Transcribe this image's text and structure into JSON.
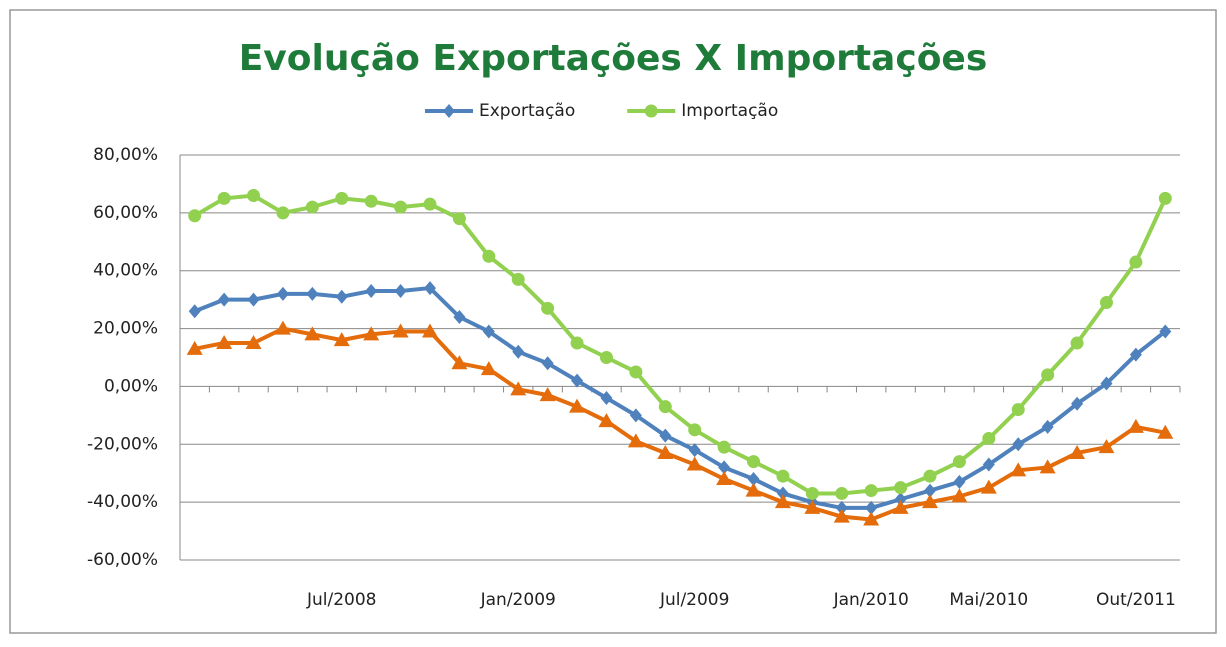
{
  "chart_data": {
    "type": "line",
    "title": "Evolução Exportações X Importações",
    "categories": [
      null,
      null,
      null,
      null,
      null,
      "Jul/2008",
      null,
      null,
      null,
      null,
      null,
      "Jan/2009",
      null,
      null,
      null,
      null,
      null,
      "Jul/2009",
      null,
      null,
      null,
      null,
      null,
      "Jan/2010",
      null,
      null,
      null,
      "Mai/2010",
      null,
      null,
      null,
      null,
      "Out/2011",
      null
    ],
    "series": [
      {
        "name": "Exportação",
        "color": "#4f81bd",
        "marker": "diamond",
        "values": [
          26,
          30,
          30,
          32,
          32,
          31,
          33,
          33,
          34,
          24,
          19,
          12,
          8,
          2,
          -4,
          -10,
          -17,
          -22,
          -28,
          -32,
          -37,
          -40,
          -42,
          -42,
          -39,
          -36,
          -33,
          -27,
          -20,
          -14,
          -6,
          1,
          11,
          19
        ]
      },
      {
        "name": "Importação",
        "color": "#92d050",
        "marker": "circle",
        "values": [
          59,
          65,
          66,
          60,
          62,
          65,
          64,
          62,
          63,
          58,
          45,
          37,
          27,
          15,
          10,
          5,
          -7,
          -15,
          -21,
          -26,
          -31,
          -37,
          -37,
          -36,
          -35,
          -31,
          -26,
          -18,
          -8,
          4,
          15,
          29,
          43,
          65
        ]
      },
      {
        "color": "#e46c0a",
        "marker": "triangle",
        "values": [
          13,
          15,
          15,
          20,
          18,
          16,
          18,
          19,
          19,
          8,
          6,
          -1,
          -3,
          -7,
          -12,
          -19,
          -23,
          -27,
          -32,
          -36,
          -40,
          -42,
          -45,
          -46,
          -42,
          -40,
          -38,
          -35,
          -29,
          -28,
          -23,
          -21,
          -14,
          -16
        ]
      }
    ],
    "ylim": [
      -60,
      80
    ],
    "yticks": [
      {
        "value": -60,
        "label": "-60,00%"
      },
      {
        "value": -40,
        "label": "-40,00%"
      },
      {
        "value": -20,
        "label": "-20,00%"
      },
      {
        "value": 0,
        "label": "0,00%"
      },
      {
        "value": 20,
        "label": "20,00%"
      },
      {
        "value": 40,
        "label": "40,00%"
      },
      {
        "value": 60,
        "label": "60,00%"
      },
      {
        "value": 80,
        "label": "80,00%"
      }
    ],
    "grid": true,
    "legend": "top"
  }
}
